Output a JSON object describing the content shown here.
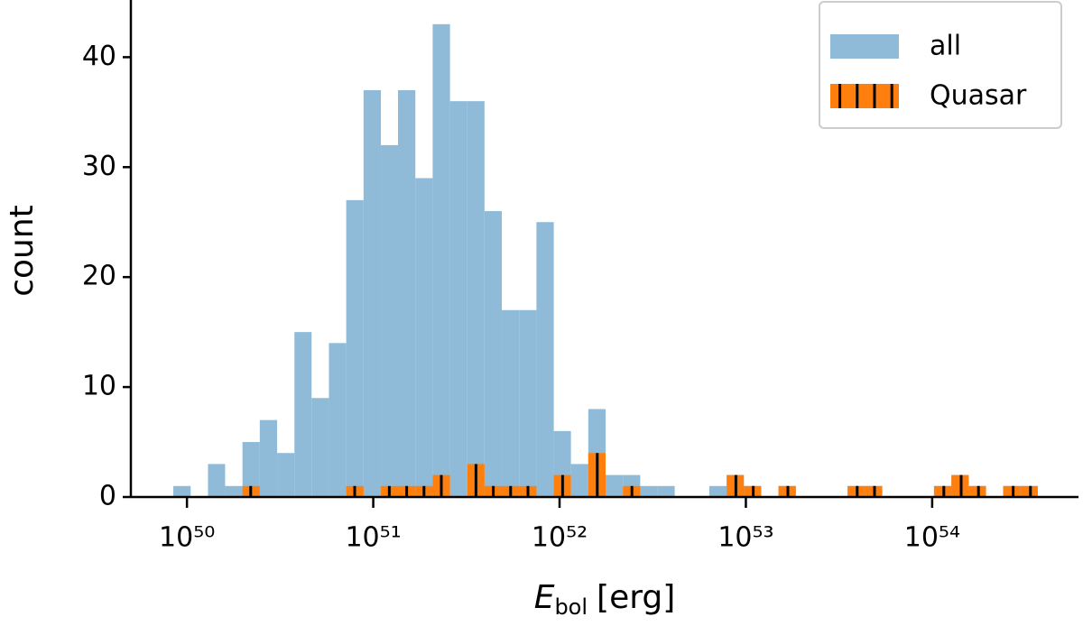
{
  "chart_data": {
    "type": "histogram",
    "xlabel": {
      "symbol": "E",
      "subscript": "bol",
      "unit": "[erg]"
    },
    "ylabel": "count",
    "xscale": "log",
    "bins": [
      8.45e+49,
      1.047e+50,
      1.297e+50,
      1.603e+50,
      1.986e+50,
      2.46e+50,
      3.048e+50,
      3.776e+50,
      4.667e+50,
      5.781e+50,
      7.161e+50,
      8.872e+50,
      1.099e+51,
      1.358e+51,
      1.683e+51,
      2.084e+51,
      2.582e+51,
      3.199e+51,
      3.954e+51,
      4.898e+51,
      6.067e+51,
      7.516e+51,
      9.311e+51,
      1.151e+52,
      1.426e+52,
      1.766e+52,
      2.188e+52,
      2.71e+52,
      3.35e+52,
      4.15e+52,
      5.14e+52,
      6.368e+52,
      7.889e+52,
      9.75e+52,
      1.208e+53,
      1.496e+53,
      1.854e+53,
      2.296e+53,
      2.838e+53,
      3.516e+53,
      4.355e+53,
      5.395e+53,
      6.683e+53,
      8.26e+53,
      1.023e+54,
      1.268e+54,
      1.57e+54,
      1.945e+54,
      2.404e+54,
      2.979e+54,
      3.69e+54
    ],
    "series": [
      {
        "name": "all",
        "color": "#8fbbd9",
        "values": [
          1,
          0,
          3,
          1,
          5,
          7,
          4,
          15,
          9,
          14,
          27,
          37,
          32,
          37,
          29,
          43,
          36,
          36,
          26,
          17,
          17,
          25,
          6,
          3,
          8,
          2,
          2,
          1,
          1,
          0,
          0,
          1,
          2,
          1,
          0,
          1,
          0,
          0,
          0,
          1,
          1,
          0,
          0,
          0,
          1,
          2,
          1,
          0,
          1,
          1
        ]
      },
      {
        "name": "Quasar",
        "color": "#ff7f0e",
        "hatch": "|",
        "values": [
          0,
          0,
          0,
          0,
          1,
          0,
          0,
          0,
          0,
          0,
          1,
          0,
          1,
          1,
          1,
          2,
          0,
          3,
          1,
          1,
          1,
          0,
          2,
          0,
          4,
          0,
          1,
          0,
          0,
          0,
          0,
          0,
          2,
          1,
          0,
          1,
          0,
          0,
          0,
          1,
          1,
          0,
          0,
          0,
          1,
          2,
          1,
          0,
          1,
          1
        ]
      }
    ],
    "xlim": [
      5e+49,
      6.1e+54
    ],
    "ylim": [
      0,
      45.2
    ],
    "xticks": [
      {
        "value": 1e+50,
        "label": "10⁵⁰"
      },
      {
        "value": 1e+51,
        "label": "10⁵¹"
      },
      {
        "value": 1e+52,
        "label": "10⁵²"
      },
      {
        "value": 1e+53,
        "label": "10⁵³"
      },
      {
        "value": 1e+54,
        "label": "10⁵⁴"
      }
    ],
    "yticks": [
      0,
      10,
      20,
      30,
      40
    ],
    "legend": "upper right"
  }
}
